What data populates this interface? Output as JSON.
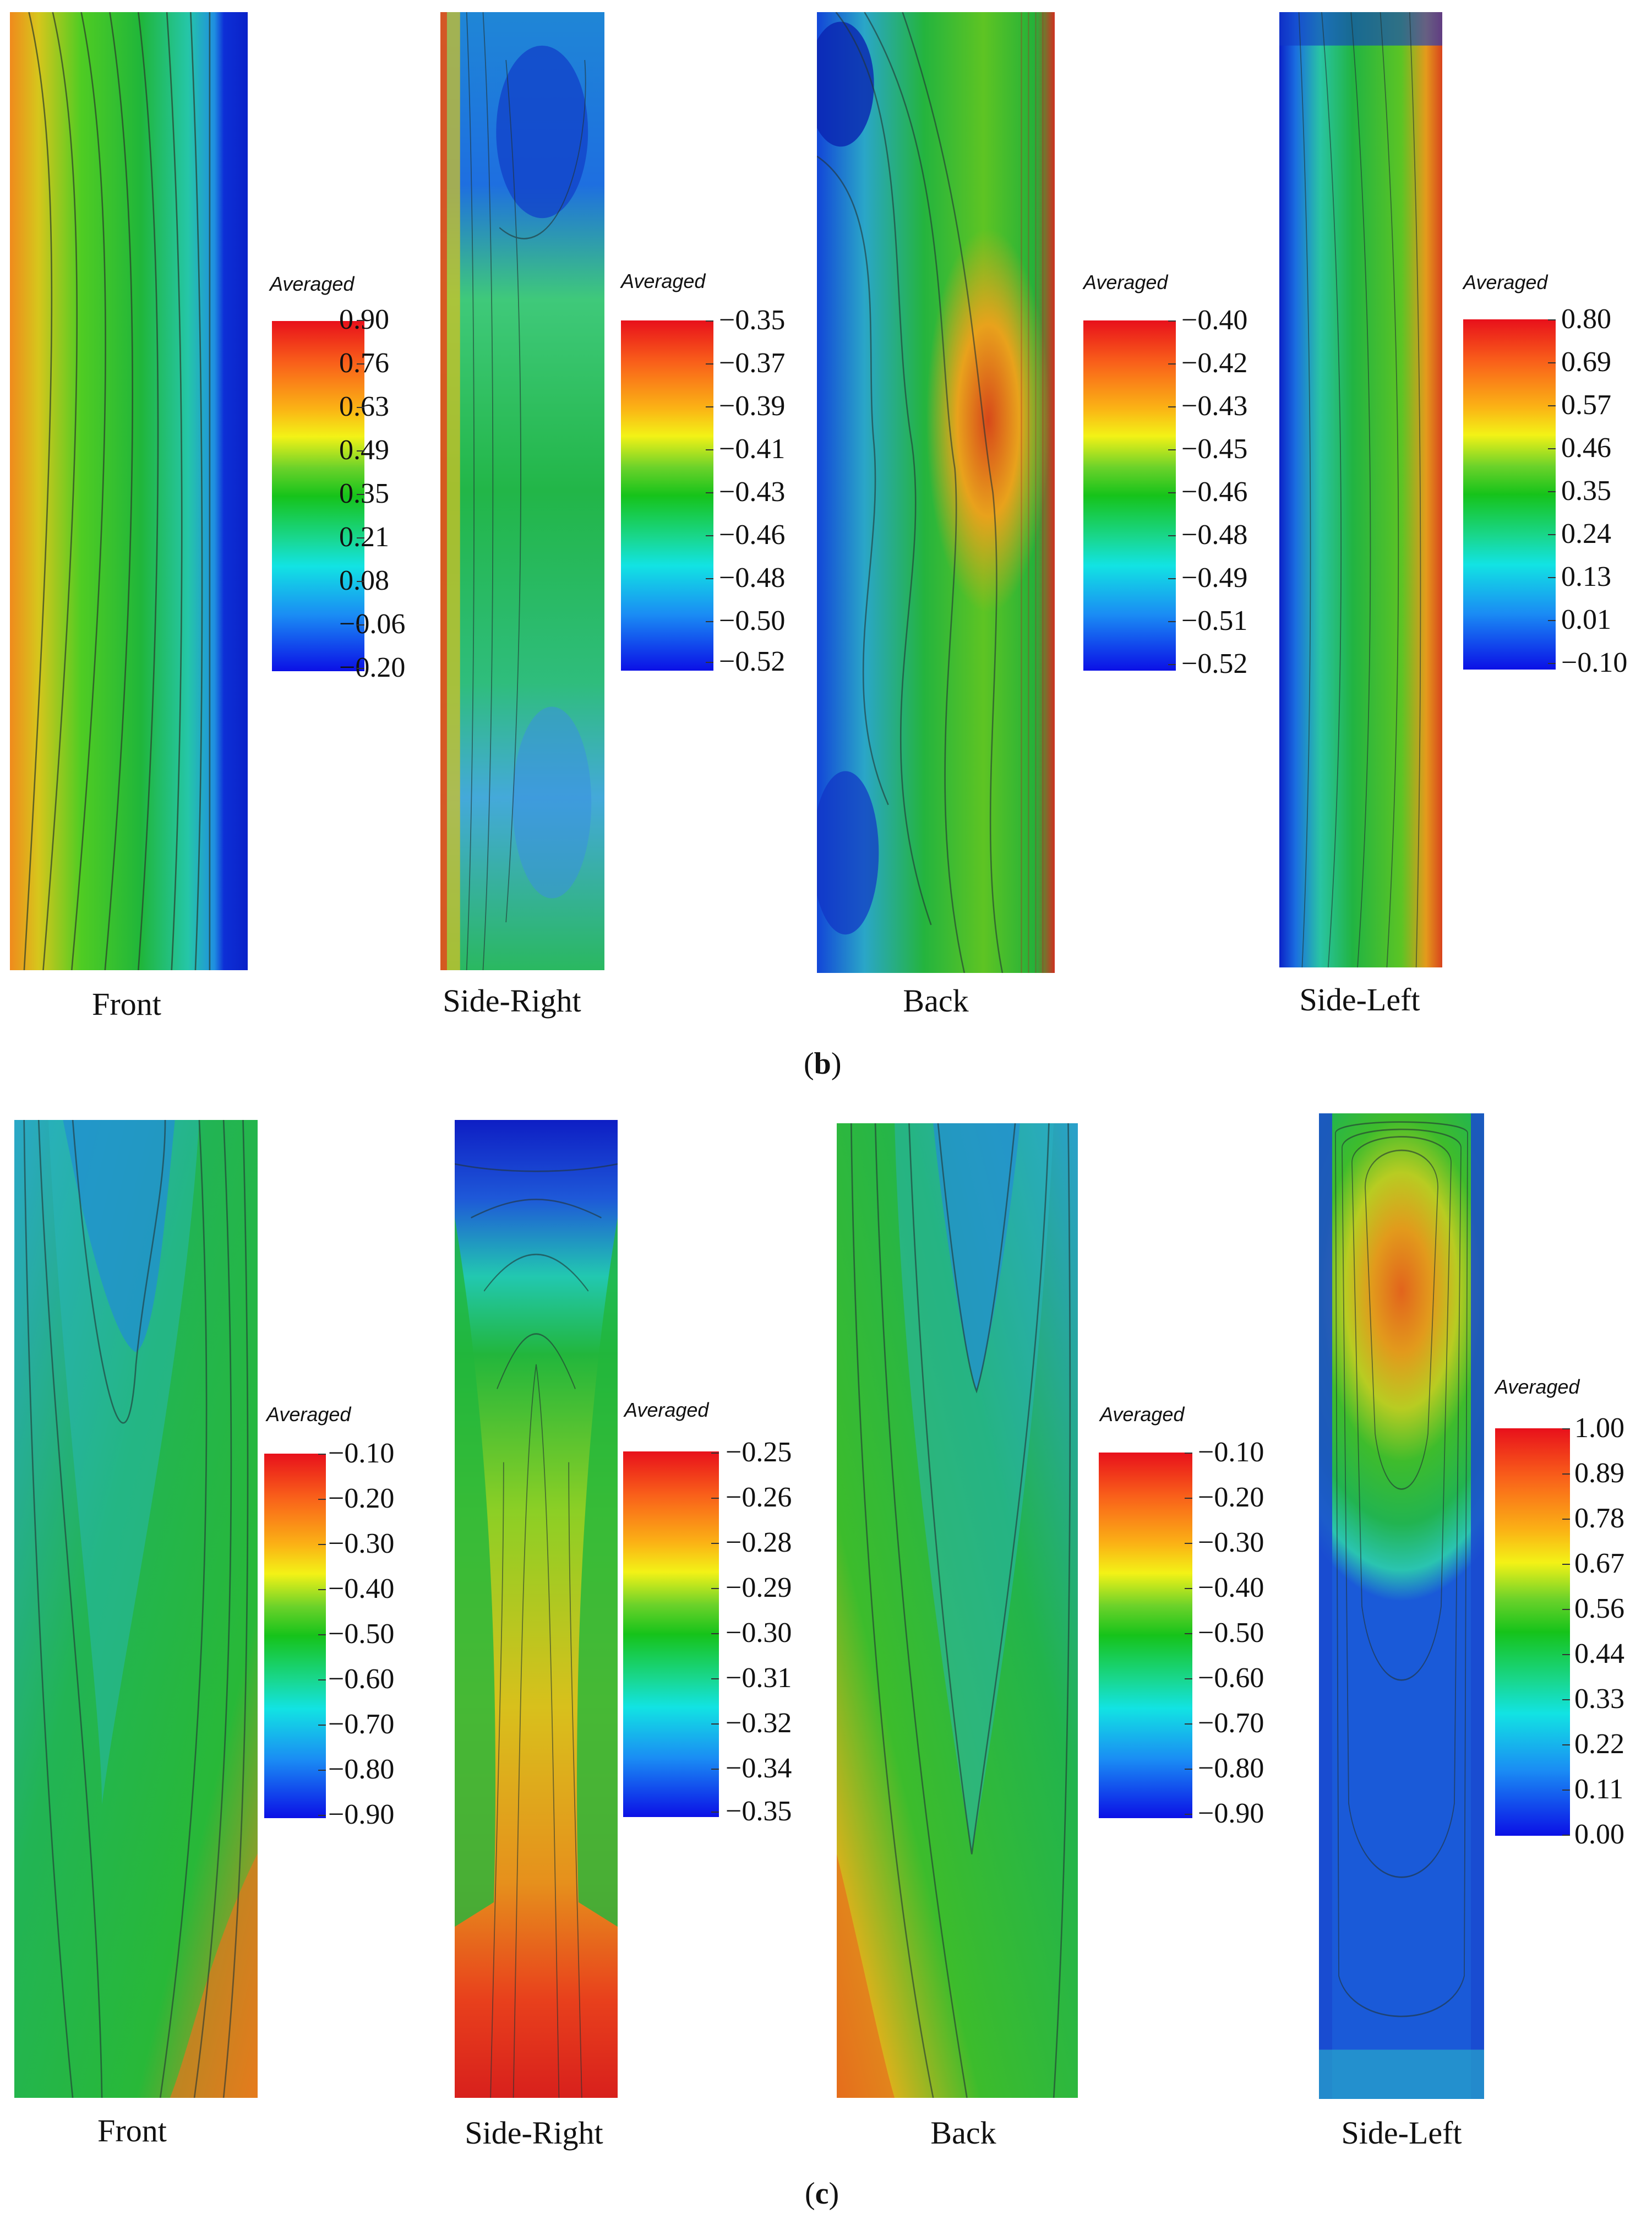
{
  "figure": {
    "parts": [
      {
        "label": "b",
        "panels": [
          {
            "name": "Front",
            "legend_title": "Averaged",
            "ticks": [
              "0.90",
              "0.76",
              "0.63",
              "0.49",
              "0.35",
              "0.21",
              "0.08",
              "−0.06",
              "−0.20"
            ]
          },
          {
            "name": "Side-Right",
            "legend_title": "Averaged",
            "ticks": [
              "−0.35",
              "−0.37",
              "−0.39",
              "−0.41",
              "−0.43",
              "−0.46",
              "−0.48",
              "−0.50",
              "−0.52"
            ]
          },
          {
            "name": "Back",
            "legend_title": "Averaged",
            "ticks": [
              "−0.40",
              "−0.42",
              "−0.43",
              "−0.45",
              "−0.46",
              "−0.48",
              "−0.49",
              "−0.51",
              "−0.52"
            ]
          },
          {
            "name": "Side-Left",
            "legend_title": "Averaged",
            "ticks": [
              "0.80",
              "0.69",
              "0.57",
              "0.46",
              "0.35",
              "0.24",
              "0.13",
              "0.01",
              "−0.10"
            ]
          }
        ]
      },
      {
        "label": "c",
        "panels": [
          {
            "name": "Front",
            "legend_title": "Averaged",
            "ticks": [
              "−0.10",
              "−0.20",
              "−0.30",
              "−0.40",
              "−0.50",
              "−0.60",
              "−0.70",
              "−0.80",
              "−0.90"
            ]
          },
          {
            "name": "Side-Right",
            "legend_title": "Averaged",
            "ticks": [
              "−0.25",
              "−0.26",
              "−0.28",
              "−0.29",
              "−0.30",
              "−0.31",
              "−0.32",
              "−0.34",
              "−0.35"
            ]
          },
          {
            "name": "Back",
            "legend_title": "Averaged",
            "ticks": [
              "−0.10",
              "−0.20",
              "−0.30",
              "−0.40",
              "−0.50",
              "−0.60",
              "−0.70",
              "−0.80",
              "−0.90"
            ]
          },
          {
            "name": "Side-Left",
            "legend_title": "Averaged",
            "ticks": [
              "1.00",
              "0.89",
              "0.78",
              "0.67",
              "0.56",
              "0.44",
              "0.33",
              "0.22",
              "0.11",
              "0.00"
            ]
          }
        ]
      }
    ]
  },
  "chart_data": [
    {
      "type": "heatmap",
      "panel": "Front",
      "part": "b",
      "colorbar": {
        "title": "Averaged",
        "ticks": [
          0.9,
          0.76,
          0.63,
          0.49,
          0.35,
          0.21,
          0.08,
          -0.06,
          -0.2
        ],
        "range": [
          -0.2,
          0.9
        ]
      }
    },
    {
      "type": "heatmap",
      "panel": "Side-Right",
      "part": "b",
      "colorbar": {
        "title": "Averaged",
        "ticks": [
          -0.35,
          -0.37,
          -0.39,
          -0.41,
          -0.43,
          -0.46,
          -0.48,
          -0.5,
          -0.52
        ],
        "range": [
          -0.52,
          -0.35
        ]
      }
    },
    {
      "type": "heatmap",
      "panel": "Back",
      "part": "b",
      "colorbar": {
        "title": "Averaged",
        "ticks": [
          -0.4,
          -0.42,
          -0.43,
          -0.45,
          -0.46,
          -0.48,
          -0.49,
          -0.51,
          -0.52
        ],
        "range": [
          -0.52,
          -0.4
        ]
      }
    },
    {
      "type": "heatmap",
      "panel": "Side-Left",
      "part": "b",
      "colorbar": {
        "title": "Averaged",
        "ticks": [
          0.8,
          0.69,
          0.57,
          0.46,
          0.35,
          0.24,
          0.13,
          0.01,
          -0.1
        ],
        "range": [
          -0.1,
          0.8
        ]
      }
    },
    {
      "type": "heatmap",
      "panel": "Front",
      "part": "c",
      "colorbar": {
        "title": "Averaged",
        "ticks": [
          -0.1,
          -0.2,
          -0.3,
          -0.4,
          -0.5,
          -0.6,
          -0.7,
          -0.8,
          -0.9
        ],
        "range": [
          -0.9,
          -0.1
        ]
      }
    },
    {
      "type": "heatmap",
      "panel": "Side-Right",
      "part": "c",
      "colorbar": {
        "title": "Averaged",
        "ticks": [
          -0.25,
          -0.26,
          -0.28,
          -0.29,
          -0.3,
          -0.31,
          -0.32,
          -0.34,
          -0.35
        ],
        "range": [
          -0.35,
          -0.25
        ]
      }
    },
    {
      "type": "heatmap",
      "panel": "Back",
      "part": "c",
      "colorbar": {
        "title": "Averaged",
        "ticks": [
          -0.1,
          -0.2,
          -0.3,
          -0.4,
          -0.5,
          -0.6,
          -0.7,
          -0.8,
          -0.9
        ],
        "range": [
          -0.9,
          -0.1
        ]
      }
    },
    {
      "type": "heatmap",
      "panel": "Side-Left",
      "part": "c",
      "colorbar": {
        "title": "Averaged",
        "ticks": [
          1.0,
          0.89,
          0.78,
          0.67,
          0.56,
          0.44,
          0.33,
          0.22,
          0.11,
          0.0
        ],
        "range": [
          0.0,
          1.0
        ]
      }
    }
  ]
}
